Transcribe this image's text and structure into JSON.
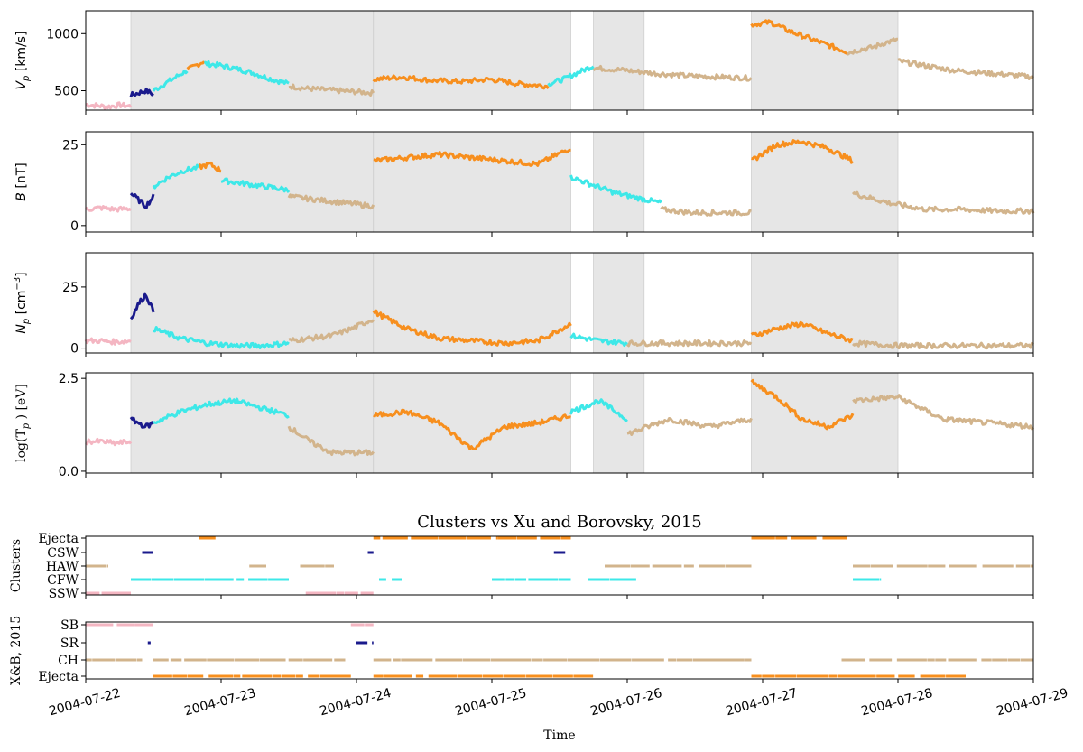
{
  "chart_data": {
    "type": "scatter",
    "x_range": [
      "2004-07-22",
      "2004-07-29"
    ],
    "x_tick_labels": [
      "2004-07-22",
      "2004-07-23",
      "2004-07-24",
      "2004-07-25",
      "2004-07-26",
      "2004-07-27",
      "2004-07-28",
      "2004-07-29"
    ],
    "xlabel": "Time",
    "colors": {
      "SSW": "#f4b6c2",
      "CFW": "#3ee8e8",
      "HAW": "#d2b48c",
      "CSW": "#1a1a8c",
      "Ejecta": "#f78f1e",
      "shade": "#e6e6e6"
    },
    "shaded_intervals": [
      [
        "2004-07-22T08:00",
        "2004-07-24T03:00"
      ],
      [
        "2004-07-24T03:00",
        "2004-07-25T14:00"
      ],
      [
        "2004-07-25T18:00",
        "2004-07-26T03:00"
      ],
      [
        "2004-07-26T22:00",
        "2004-07-28T00:00"
      ]
    ],
    "panels": [
      {
        "ylabel_html": "V<tspan font-style='italic'>p</tspan>",
        "ylabel_main": "V",
        "ylabel_sub": "p",
        "ylabel_unit": "[km/s]",
        "ylim": [
          330,
          1200
        ],
        "yticks": [
          "500",
          "1000"
        ],
        "ytick_values": [
          500,
          1000
        ],
        "segments": [
          {
            "t": [
              "2004-07-22T00:00",
              "2004-07-22T08:00"
            ],
            "cls": "SSW",
            "v": [
              380,
              370,
              360,
              375,
              365
            ]
          },
          {
            "t": [
              "2004-07-22T08:00",
              "2004-07-22T12:00"
            ],
            "cls": "CSW",
            "v": [
              460,
              480,
              500,
              470
            ]
          },
          {
            "t": [
              "2004-07-22T12:00",
              "2004-07-22T18:00"
            ],
            "cls": "CFW",
            "v": [
              500,
              560,
              620,
              680
            ]
          },
          {
            "t": [
              "2004-07-22T18:00",
              "2004-07-22T21:00"
            ],
            "cls": "Ejecta",
            "v": [
              680,
              720,
              760
            ]
          },
          {
            "t": [
              "2004-07-22T21:00",
              "2004-07-23T12:00"
            ],
            "cls": "CFW",
            "v": [
              740,
              720,
              690,
              650,
              600,
              560
            ]
          },
          {
            "t": [
              "2004-07-23T12:00",
              "2004-07-24T03:00"
            ],
            "cls": "HAW",
            "v": [
              540,
              520,
              510,
              500,
              490,
              480
            ]
          },
          {
            "t": [
              "2004-07-24T03:00",
              "2004-07-25T10:00"
            ],
            "cls": "Ejecta",
            "v": [
              600,
              620,
              590,
              580,
              600,
              560,
              540
            ]
          },
          {
            "t": [
              "2004-07-25T10:00",
              "2004-07-25T18:00"
            ],
            "cls": "CFW",
            "v": [
              560,
              600,
              660,
              720
            ]
          },
          {
            "t": [
              "2004-07-25T18:00",
              "2004-07-26T22:00"
            ],
            "cls": "HAW",
            "v": [
              700,
              680,
              650,
              630,
              620,
              610
            ]
          },
          {
            "t": [
              "2004-07-26T22:00",
              "2004-07-27T15:00"
            ],
            "cls": "Ejecta",
            "v": [
              1080,
              1100,
              1020,
              960,
              900,
              840
            ]
          },
          {
            "t": [
              "2004-07-27T15:00",
              "2004-07-28T00:00"
            ],
            "cls": "HAW",
            "v": [
              830,
              860,
              880,
              920,
              950
            ]
          },
          {
            "t": [
              "2004-07-28T00:00",
              "2004-07-29T00:00"
            ],
            "cls": "HAW",
            "v": [
              760,
              720,
              680,
              660,
              640,
              620
            ]
          }
        ]
      },
      {
        "ylabel_main": "B",
        "ylabel_unit": "[nT]",
        "ylim": [
          -2,
          29
        ],
        "yticks": [
          "0",
          "25"
        ],
        "ytick_values": [
          0,
          25
        ],
        "segments": [
          {
            "t": [
              "2004-07-22T00:00",
              "2004-07-22T08:00"
            ],
            "cls": "SSW",
            "v": [
              5,
              5.5,
              5,
              5.2
            ]
          },
          {
            "t": [
              "2004-07-22T08:00",
              "2004-07-22T12:00"
            ],
            "cls": "CSW",
            "v": [
              10,
              8,
              6,
              9
            ]
          },
          {
            "t": [
              "2004-07-22T12:00",
              "2004-07-22T20:00"
            ],
            "cls": "CFW",
            "v": [
              12,
              15,
              17,
              18
            ]
          },
          {
            "t": [
              "2004-07-22T20:00",
              "2004-07-23T00:00"
            ],
            "cls": "Ejecta",
            "v": [
              18,
              19,
              17
            ]
          },
          {
            "t": [
              "2004-07-23T00:00",
              "2004-07-23T12:00"
            ],
            "cls": "CFW",
            "v": [
              14,
              13,
              12,
              11
            ]
          },
          {
            "t": [
              "2004-07-23T12:00",
              "2004-07-24T03:00"
            ],
            "cls": "HAW",
            "v": [
              9,
              8,
              7,
              6
            ]
          },
          {
            "t": [
              "2004-07-24T03:00",
              "2004-07-25T14:00"
            ],
            "cls": "Ejecta",
            "v": [
              20,
              21,
              22,
              21,
              20,
              19,
              24
            ]
          },
          {
            "t": [
              "2004-07-25T14:00",
              "2004-07-26T06:00"
            ],
            "cls": "CFW",
            "v": [
              15,
              10,
              7
            ]
          },
          {
            "t": [
              "2004-07-26T06:00",
              "2004-07-26T22:00"
            ],
            "cls": "HAW",
            "v": [
              5,
              4,
              4,
              4
            ]
          },
          {
            "t": [
              "2004-07-26T22:00",
              "2004-07-27T16:00"
            ],
            "cls": "Ejecta",
            "v": [
              20,
              25,
              26,
              24,
              20
            ]
          },
          {
            "t": [
              "2004-07-27T16:00",
              "2004-07-29T00:00"
            ],
            "cls": "HAW",
            "v": [
              10,
              7,
              5,
              5,
              4.5,
              4.5
            ]
          }
        ]
      },
      {
        "ylabel_main": "N",
        "ylabel_sub": "p",
        "ylabel_unit": "[cm",
        "ylabel_sup": "−3",
        "ylabel_close": "]",
        "ylim": [
          -2,
          39
        ],
        "yticks": [
          "0",
          "25"
        ],
        "ytick_values": [
          0,
          25
        ],
        "segments": [
          {
            "t": [
              "2004-07-22T00:00",
              "2004-07-22T08:00"
            ],
            "cls": "SSW",
            "v": [
              3,
              3,
              2.5,
              3
            ]
          },
          {
            "t": [
              "2004-07-22T08:00",
              "2004-07-22T12:00"
            ],
            "cls": "CSW",
            "v": [
              12,
              18,
              22,
              15
            ]
          },
          {
            "t": [
              "2004-07-22T12:00",
              "2004-07-23T12:00"
            ],
            "cls": "CFW",
            "v": [
              8,
              4,
              2,
              1,
              1,
              2
            ]
          },
          {
            "t": [
              "2004-07-23T12:00",
              "2004-07-24T03:00"
            ],
            "cls": "HAW",
            "v": [
              3,
              4,
              5,
              8,
              12
            ]
          },
          {
            "t": [
              "2004-07-24T03:00",
              "2004-07-25T14:00"
            ],
            "cls": "Ejecta",
            "v": [
              15,
              8,
              4,
              3,
              2,
              3,
              10
            ]
          },
          {
            "t": [
              "2004-07-25T14:00",
              "2004-07-26T00:00"
            ],
            "cls": "CFW",
            "v": [
              5,
              3,
              2
            ]
          },
          {
            "t": [
              "2004-07-26T00:00",
              "2004-07-26T22:00"
            ],
            "cls": "HAW",
            "v": [
              2,
              2,
              2,
              2
            ]
          },
          {
            "t": [
              "2004-07-26T22:00",
              "2004-07-27T16:00"
            ],
            "cls": "Ejecta",
            "v": [
              5,
              8,
              10,
              6,
              3
            ]
          },
          {
            "t": [
              "2004-07-27T16:00",
              "2004-07-29T00:00"
            ],
            "cls": "HAW",
            "v": [
              2,
              1,
              1,
              1,
              1
            ]
          }
        ]
      },
      {
        "ylabel_main": "log(T",
        "ylabel_sub": "p",
        "ylabel_unit": ") [eV]",
        "ylim": [
          -0.05,
          2.65
        ],
        "yticks": [
          "0.0",
          "2.5"
        ],
        "ytick_values": [
          0,
          2.5
        ],
        "segments": [
          {
            "t": [
              "2004-07-22T00:00",
              "2004-07-22T08:00"
            ],
            "cls": "SSW",
            "v": [
              0.8,
              0.8,
              0.75,
              0.8
            ]
          },
          {
            "t": [
              "2004-07-22T08:00",
              "2004-07-22T12:00"
            ],
            "cls": "CSW",
            "v": [
              1.4,
              1.3,
              1.2,
              1.3
            ]
          },
          {
            "t": [
              "2004-07-22T12:00",
              "2004-07-23T12:00"
            ],
            "cls": "CFW",
            "v": [
              1.3,
              1.6,
              1.8,
              1.9,
              1.7,
              1.5
            ]
          },
          {
            "t": [
              "2004-07-23T12:00",
              "2004-07-24T03:00"
            ],
            "cls": "HAW",
            "v": [
              1.2,
              0.8,
              0.5,
              0.5,
              0.5
            ]
          },
          {
            "t": [
              "2004-07-24T03:00",
              "2004-07-25T14:00"
            ],
            "cls": "Ejecta",
            "v": [
              1.5,
              1.6,
              1.3,
              0.6,
              1.2,
              1.3,
              1.5
            ]
          },
          {
            "t": [
              "2004-07-25T14:00",
              "2004-07-26T00:00"
            ],
            "cls": "CFW",
            "v": [
              1.6,
              1.9,
              1.4
            ]
          },
          {
            "t": [
              "2004-07-26T00:00",
              "2004-07-26T22:00"
            ],
            "cls": "HAW",
            "v": [
              1.0,
              1.4,
              1.2,
              1.4
            ]
          },
          {
            "t": [
              "2004-07-26T22:00",
              "2004-07-27T16:00"
            ],
            "cls": "Ejecta",
            "v": [
              2.4,
              2.0,
              1.4,
              1.2,
              1.5
            ]
          },
          {
            "t": [
              "2004-07-27T16:00",
              "2004-07-29T00:00"
            ],
            "cls": "HAW",
            "v": [
              1.9,
              2.0,
              1.4,
              1.3,
              1.2
            ]
          }
        ]
      }
    ],
    "cluster_panel": {
      "title": "Clusters vs Xu and Borovsky, 2015",
      "ylabel": "Clusters",
      "rows": [
        "Ejecta",
        "CSW",
        "HAW",
        "CFW",
        "SSW"
      ],
      "bars": [
        {
          "row": "Ejecta",
          "cls": "Ejecta",
          "t": [
            [
              "2004-07-22T20:00",
              "2004-07-22T23:00"
            ],
            [
              "2004-07-24T03:00",
              "2004-07-25T01:00"
            ],
            [
              "2004-07-25T01:00",
              "2004-07-25T14:00"
            ],
            [
              "2004-07-26T22:00",
              "2004-07-27T15:00"
            ]
          ]
        },
        {
          "row": "CSW",
          "cls": "CSW",
          "t": [
            [
              "2004-07-22T10:00",
              "2004-07-22T12:00"
            ],
            [
              "2004-07-24T02:00",
              "2004-07-24T03:00"
            ],
            [
              "2004-07-25T11:00",
              "2004-07-25T13:00"
            ]
          ]
        },
        {
          "row": "HAW",
          "cls": "HAW",
          "t": [
            [
              "2004-07-22T00:00",
              "2004-07-22T04:00"
            ],
            [
              "2004-07-23T05:00",
              "2004-07-23T08:00"
            ],
            [
              "2004-07-23T14:00",
              "2004-07-23T20:00"
            ],
            [
              "2004-07-25T20:00",
              "2004-07-26T22:00"
            ],
            [
              "2004-07-27T16:00",
              "2004-07-29T00:00"
            ]
          ]
        },
        {
          "row": "CFW",
          "cls": "CFW",
          "t": [
            [
              "2004-07-22T08:00",
              "2004-07-23T12:00"
            ],
            [
              "2004-07-24T04:00",
              "2004-07-24T08:00"
            ],
            [
              "2004-07-25T00:00",
              "2004-07-25T14:00"
            ],
            [
              "2004-07-25T17:00",
              "2004-07-26T02:00"
            ],
            [
              "2004-07-27T16:00",
              "2004-07-27T21:00"
            ]
          ]
        },
        {
          "row": "SSW",
          "cls": "SSW",
          "t": [
            [
              "2004-07-22T00:00",
              "2004-07-22T08:00"
            ],
            [
              "2004-07-23T15:00",
              "2004-07-24T03:00"
            ]
          ]
        }
      ]
    },
    "xb_panel": {
      "ylabel": "X&B, 2015",
      "rows": [
        "SB",
        "SR",
        "CH",
        "Ejecta"
      ],
      "bars": [
        {
          "row": "SB",
          "cls": "SSW",
          "t": [
            [
              "2004-07-22T00:00",
              "2004-07-22T12:00"
            ],
            [
              "2004-07-23T23:00",
              "2004-07-24T03:00"
            ]
          ]
        },
        {
          "row": "SR",
          "cls": "CSW",
          "t": [
            [
              "2004-07-22T11:00",
              "2004-07-22T11:30"
            ],
            [
              "2004-07-24T00:00",
              "2004-07-24T03:00"
            ]
          ]
        },
        {
          "row": "CH",
          "cls": "HAW",
          "t": [
            [
              "2004-07-22T00:00",
              "2004-07-22T10:00"
            ],
            [
              "2004-07-22T12:00",
              "2004-07-23T22:00"
            ],
            [
              "2004-07-24T03:00",
              "2004-07-25T14:00"
            ],
            [
              "2004-07-25T14:00",
              "2004-07-26T22:00"
            ],
            [
              "2004-07-27T14:00",
              "2004-07-29T00:00"
            ]
          ]
        },
        {
          "row": "Ejecta",
          "cls": "Ejecta",
          "t": [
            [
              "2004-07-22T12:00",
              "2004-07-23T23:00"
            ],
            [
              "2004-07-24T03:00",
              "2004-07-25T18:00"
            ],
            [
              "2004-07-26T22:00",
              "2004-07-28T12:00"
            ]
          ]
        }
      ]
    }
  }
}
